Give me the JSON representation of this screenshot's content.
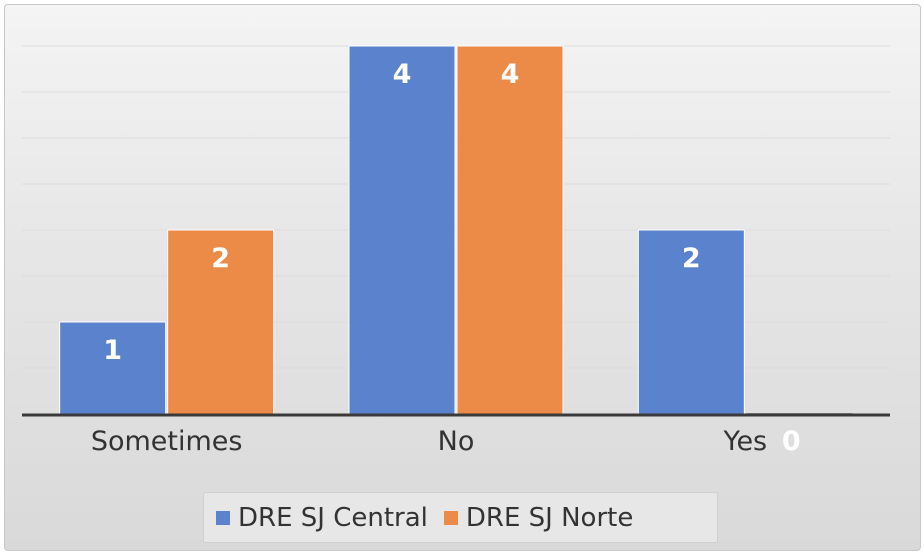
{
  "chart_data": {
    "type": "bar",
    "categories": [
      "Sometimes",
      "No",
      "Yes"
    ],
    "series": [
      {
        "name": "DRE SJ Central",
        "color": "#5b82cc",
        "values": [
          1,
          4,
          2
        ]
      },
      {
        "name": "DRE SJ Norte",
        "color": "#eb8b47",
        "values": [
          2,
          4,
          0
        ]
      }
    ],
    "ylim": [
      0,
      4
    ],
    "grid": true,
    "legend": "bottom",
    "data_labels": true
  }
}
